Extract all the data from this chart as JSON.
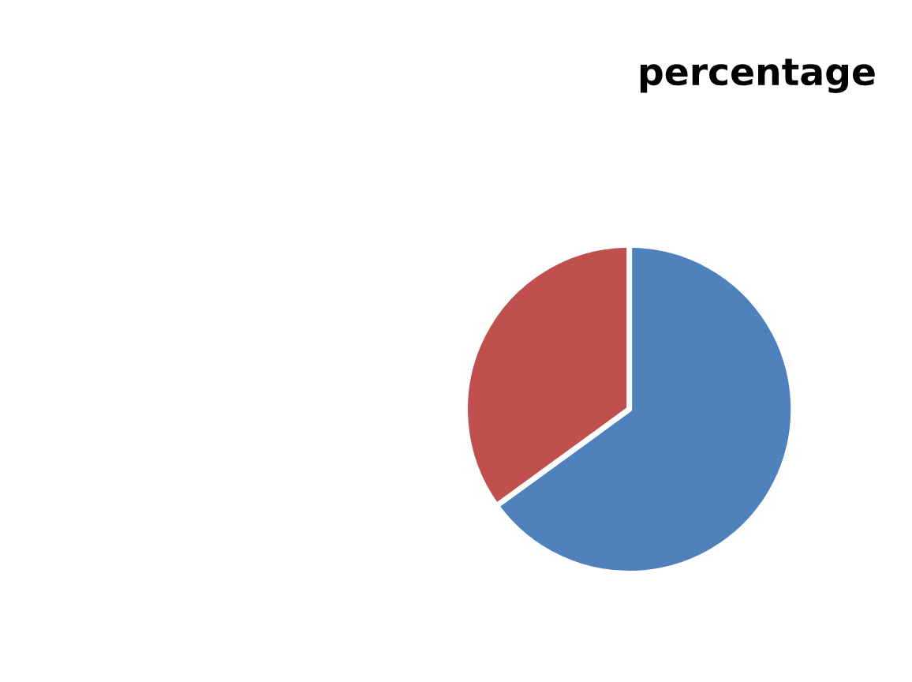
{
  "chart_data": {
    "type": "pie",
    "title": "percentage",
    "categories": [
      null,
      null
    ],
    "values": [
      65,
      35
    ],
    "colors": [
      "#4f81bd",
      "#c0504d"
    ]
  }
}
